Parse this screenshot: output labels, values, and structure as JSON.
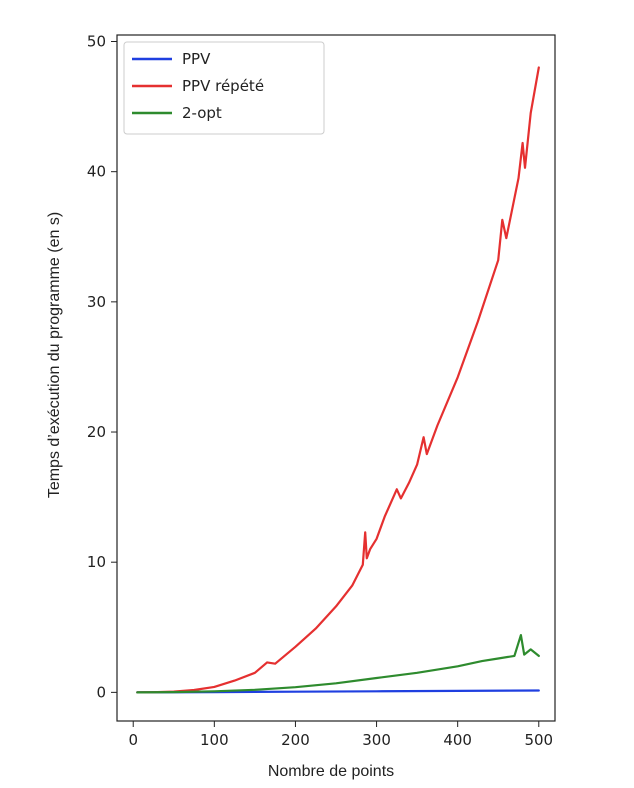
{
  "chart_data": {
    "type": "line",
    "title": "",
    "xlabel": "Nombre de points",
    "ylabel": "Temps d’exécution du programme (en s)",
    "xlim": [
      -20,
      520
    ],
    "ylim": [
      -2.2,
      50.5
    ],
    "xticks": [
      0,
      100,
      200,
      300,
      400,
      500
    ],
    "yticks": [
      0,
      10,
      20,
      30,
      40,
      50
    ],
    "grid": false,
    "legend_position": "top-left",
    "series": [
      {
        "name": "PPV",
        "color": "#1f3fe0",
        "x": [
          5,
          100,
          200,
          300,
          400,
          500
        ],
        "y": [
          0.0,
          0.02,
          0.05,
          0.08,
          0.11,
          0.14
        ]
      },
      {
        "name": "PPV répété",
        "color": "#e53030",
        "x": [
          5,
          25,
          50,
          75,
          100,
          125,
          150,
          165,
          175,
          200,
          225,
          250,
          270,
          283,
          286,
          288,
          292,
          300,
          310,
          325,
          330,
          340,
          350,
          358,
          362,
          375,
          400,
          425,
          450,
          455,
          460,
          475,
          480,
          483,
          490,
          500
        ],
        "y": [
          0.0,
          0.01,
          0.06,
          0.18,
          0.42,
          0.9,
          1.5,
          2.3,
          2.2,
          3.5,
          4.9,
          6.6,
          8.2,
          9.8,
          12.3,
          10.3,
          11.0,
          11.8,
          13.5,
          15.6,
          14.9,
          16.1,
          17.5,
          19.6,
          18.3,
          20.5,
          24.2,
          28.5,
          33.2,
          36.3,
          34.9,
          39.5,
          42.2,
          40.3,
          44.5,
          48.0
        ]
      },
      {
        "name": "2-opt",
        "color": "#2e8b2e",
        "x": [
          5,
          50,
          100,
          150,
          200,
          250,
          300,
          350,
          400,
          430,
          450,
          470,
          478,
          482,
          490,
          500
        ],
        "y": [
          0.0,
          0.02,
          0.08,
          0.2,
          0.4,
          0.7,
          1.1,
          1.5,
          2.0,
          2.4,
          2.6,
          2.8,
          4.4,
          2.9,
          3.3,
          2.8
        ]
      }
    ]
  }
}
